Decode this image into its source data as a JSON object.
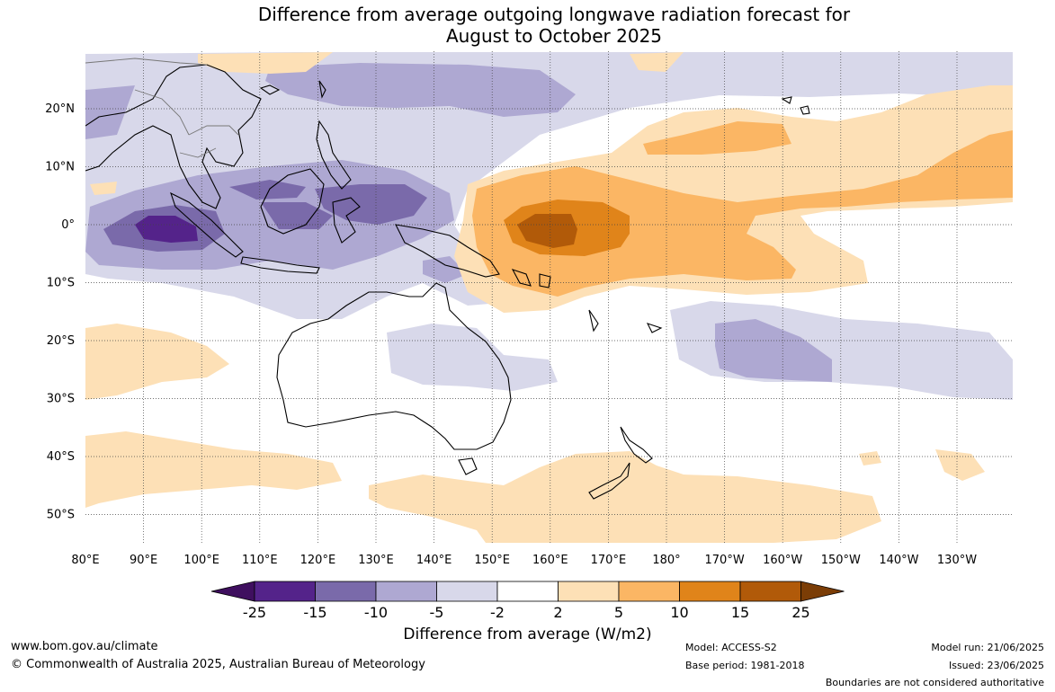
{
  "title": {
    "line1": "Difference from average outgoing longwave radiation forecast for",
    "line2": "August to October 2025"
  },
  "axes": {
    "longitude_ticks": [
      "80°E",
      "90°E",
      "100°E",
      "110°E",
      "120°E",
      "130°E",
      "140°E",
      "150°E",
      "160°E",
      "170°E",
      "180°",
      "170°W",
      "160°W",
      "150°W",
      "140°W",
      "130°W"
    ],
    "latitude_ticks": [
      "20°N",
      "10°N",
      "0°",
      "10°S",
      "20°S",
      "30°S",
      "40°S",
      "50°S"
    ]
  },
  "colorbar": {
    "title": "Difference from average (W/m2)",
    "labels": [
      "-25",
      "-15",
      "-10",
      "-5",
      "-2",
      "2",
      "5",
      "10",
      "15",
      "25"
    ],
    "colors": [
      "#3f0f5f",
      "#54238a",
      "#7a6aaa",
      "#aea8d2",
      "#d8d8ea",
      "#ffffff",
      "#fde0b6",
      "#fbb664",
      "#e0841a",
      "#b15a09",
      "#7b3d06"
    ]
  },
  "footer": {
    "website": "www.bom.gov.au/climate",
    "copyright": "© Commonwealth of Australia 2025, Australian Bureau of Meteorology",
    "model": "Model: ACCESS-S2",
    "base_period": "Base period: 1981-2018",
    "model_run": "Model run: 21/06/2025",
    "issued": "Issued: 23/06/2025",
    "disclaimer": "Boundaries are not considered authoritative"
  }
}
